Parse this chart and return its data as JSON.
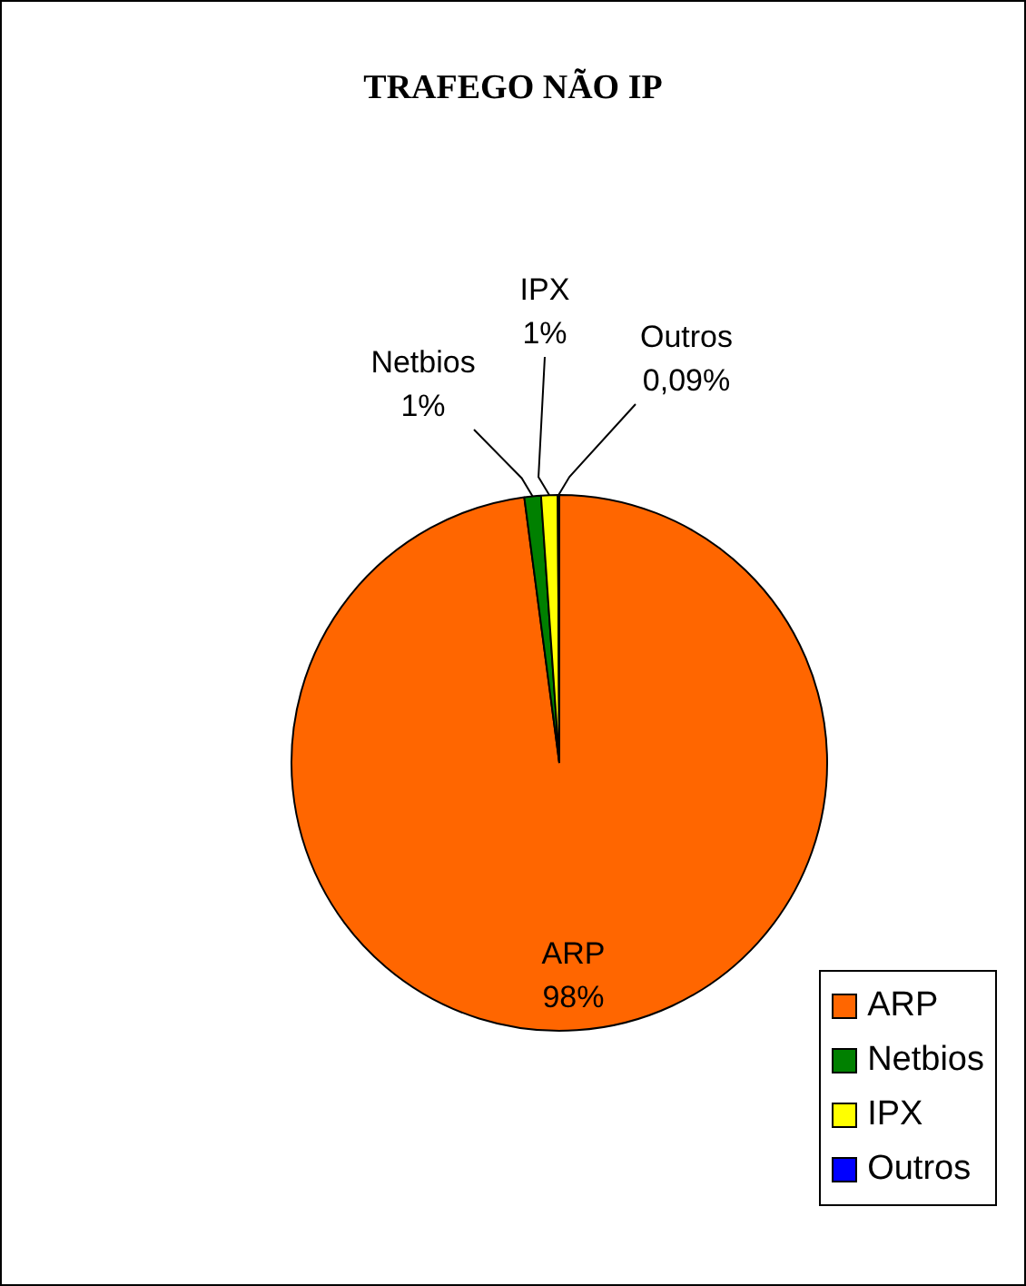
{
  "chart_data": {
    "type": "pie",
    "title": "TRAFEGO NÃO IP",
    "categories": [
      "ARP",
      "Netbios",
      "IPX",
      "Outros"
    ],
    "values": [
      98,
      1,
      1,
      0.09
    ],
    "value_labels": [
      "98%",
      "1%",
      "1%",
      "0,09%"
    ],
    "colors": [
      "#ff6600",
      "#008000",
      "#ffff00",
      "#0000ff"
    ],
    "legend": "bottom right"
  }
}
